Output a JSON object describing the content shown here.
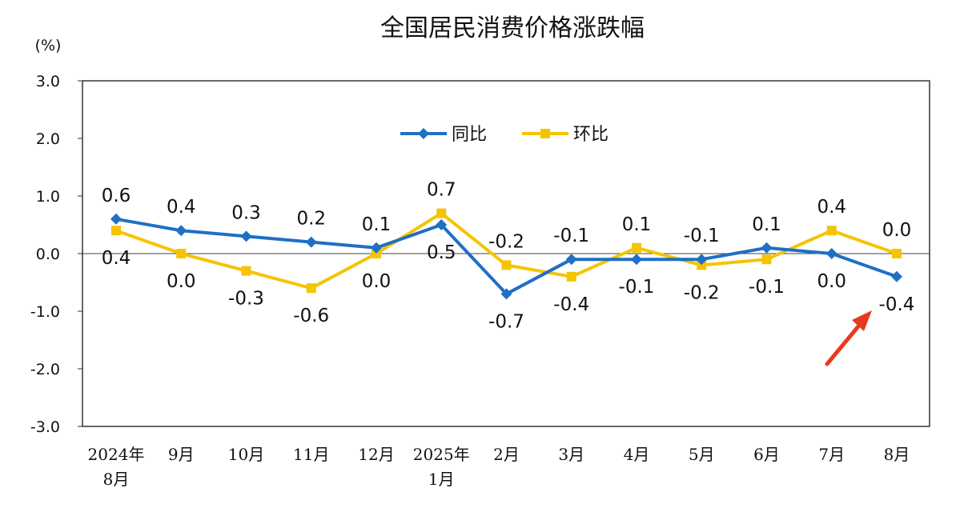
{
  "chart_data": {
    "type": "line",
    "title": "全国居民消费价格涨跌幅",
    "unit": "(%)",
    "ylim": [
      -3.0,
      3.0
    ],
    "yticks": [
      "3.0",
      "2.0",
      "1.0",
      "0.0",
      "-1.0",
      "-2.0",
      "-3.0"
    ],
    "categories": [
      [
        "2024年",
        "8月"
      ],
      [
        "9月"
      ],
      [
        "10月"
      ],
      [
        "11月"
      ],
      [
        "12月"
      ],
      [
        "2025年",
        "1月"
      ],
      [
        "2月"
      ],
      [
        "3月"
      ],
      [
        "4月"
      ],
      [
        "5月"
      ],
      [
        "6月"
      ],
      [
        "7月"
      ],
      [
        "8月"
      ]
    ],
    "series": [
      {
        "name": "同比",
        "color": "#1f6fc5",
        "values": [
          0.6,
          0.4,
          0.3,
          0.2,
          0.1,
          0.5,
          -0.7,
          -0.1,
          -0.1,
          -0.1,
          0.1,
          0.0,
          -0.4
        ]
      },
      {
        "name": "环比",
        "color": "#f5c400",
        "values": [
          0.4,
          0.0,
          -0.3,
          -0.6,
          0.0,
          0.7,
          -0.2,
          -0.4,
          0.1,
          -0.2,
          -0.1,
          0.4,
          0.0
        ]
      }
    ],
    "legend": "top-center",
    "grid": false,
    "annotation": {
      "type": "arrow",
      "color": "#e8391e",
      "target": "8月 同比"
    }
  }
}
